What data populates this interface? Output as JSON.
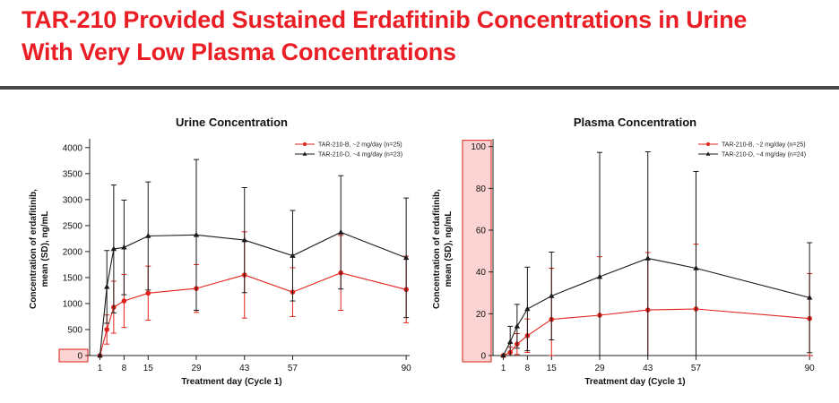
{
  "slide": {
    "title_line1": "TAR-210 Provided Sustained Erdafitinib Concentrations in Urine",
    "title_line2": "With Very Low Plasma Concentrations",
    "accent_color": "#ea1f26",
    "rule_color": "#4a4a4a"
  },
  "chart_data": [
    {
      "type": "line",
      "title": "Urine Concentration",
      "xlabel": "Treatment day (Cycle 1)",
      "ylabel_line1": "Concentration of erdafitinib,",
      "ylabel_line2": "mean (SD), ng/mL",
      "x_ticks": [
        1,
        8,
        15,
        29,
        43,
        57,
        90
      ],
      "y_ticks": [
        0,
        500,
        1000,
        1500,
        2000,
        2500,
        3000,
        3500,
        4000
      ],
      "xlim": [
        -2,
        91
      ],
      "ylim": [
        0,
        4100
      ],
      "y_ticks_highlighted": [
        0
      ],
      "legend_position": "top-right",
      "grid": false,
      "series": [
        {
          "name": "TAR-210-B, ~2 mg/day (n=25)",
          "color": "#e0221b",
          "marker": "circle",
          "x": [
            1,
            3,
            5,
            8,
            15,
            29,
            43,
            57,
            71,
            90
          ],
          "y": [
            0,
            500,
            930,
            1050,
            1200,
            1290,
            1550,
            1220,
            1590,
            1270
          ],
          "sd": [
            0,
            280,
            500,
            510,
            520,
            460,
            830,
            470,
            720,
            640
          ]
        },
        {
          "name": "TAR-210-D, ~4 mg/day (n=23)",
          "color": "#1a1a1a",
          "marker": "triangle",
          "x": [
            1,
            3,
            5,
            8,
            15,
            29,
            43,
            57,
            71,
            90
          ],
          "y": [
            0,
            1320,
            2050,
            2080,
            2300,
            2320,
            2220,
            1920,
            2370,
            1880
          ],
          "sd": [
            0,
            700,
            1230,
            910,
            1040,
            1450,
            1010,
            870,
            1090,
            1150
          ]
        }
      ]
    },
    {
      "type": "line",
      "title": "Plasma Concentration",
      "xlabel": "Treatment day (Cycle 1)",
      "ylabel_line1": "Concentration of erdafitinib,",
      "ylabel_line2": "mean (SD), ng/mL",
      "x_ticks": [
        1,
        8,
        15,
        29,
        43,
        57,
        90
      ],
      "y_ticks": [
        0,
        20,
        40,
        60,
        80,
        100
      ],
      "xlim": [
        -2,
        91
      ],
      "ylim": [
        0,
        102
      ],
      "y_ticks_highlighted": [
        0,
        20,
        40,
        60,
        80,
        100
      ],
      "legend_position": "top-right",
      "grid": false,
      "series": [
        {
          "name": "TAR-210-B, ~2 mg/day (n=25)",
          "color": "#e0221b",
          "marker": "circle",
          "x": [
            1,
            3,
            5,
            8,
            15,
            29,
            43,
            57,
            90
          ],
          "y": [
            0,
            1.5,
            5.5,
            9.5,
            17.3,
            19.3,
            21.8,
            22.3,
            17.7
          ],
          "sd": [
            0,
            2.5,
            5,
            8,
            24.5,
            28,
            27.5,
            31,
            21.5
          ]
        },
        {
          "name": "TAR-210-D, ~4 mg/day (n=24)",
          "color": "#1a1a1a",
          "marker": "triangle",
          "x": [
            1,
            3,
            5,
            8,
            15,
            29,
            43,
            57,
            90
          ],
          "y": [
            0,
            6.5,
            14,
            22.3,
            28.5,
            37.7,
            46.5,
            41.8,
            27.7
          ],
          "sd": [
            0,
            7.5,
            10.5,
            20,
            21,
            59.5,
            51,
            46.3,
            26.3
          ]
        }
      ]
    }
  ]
}
